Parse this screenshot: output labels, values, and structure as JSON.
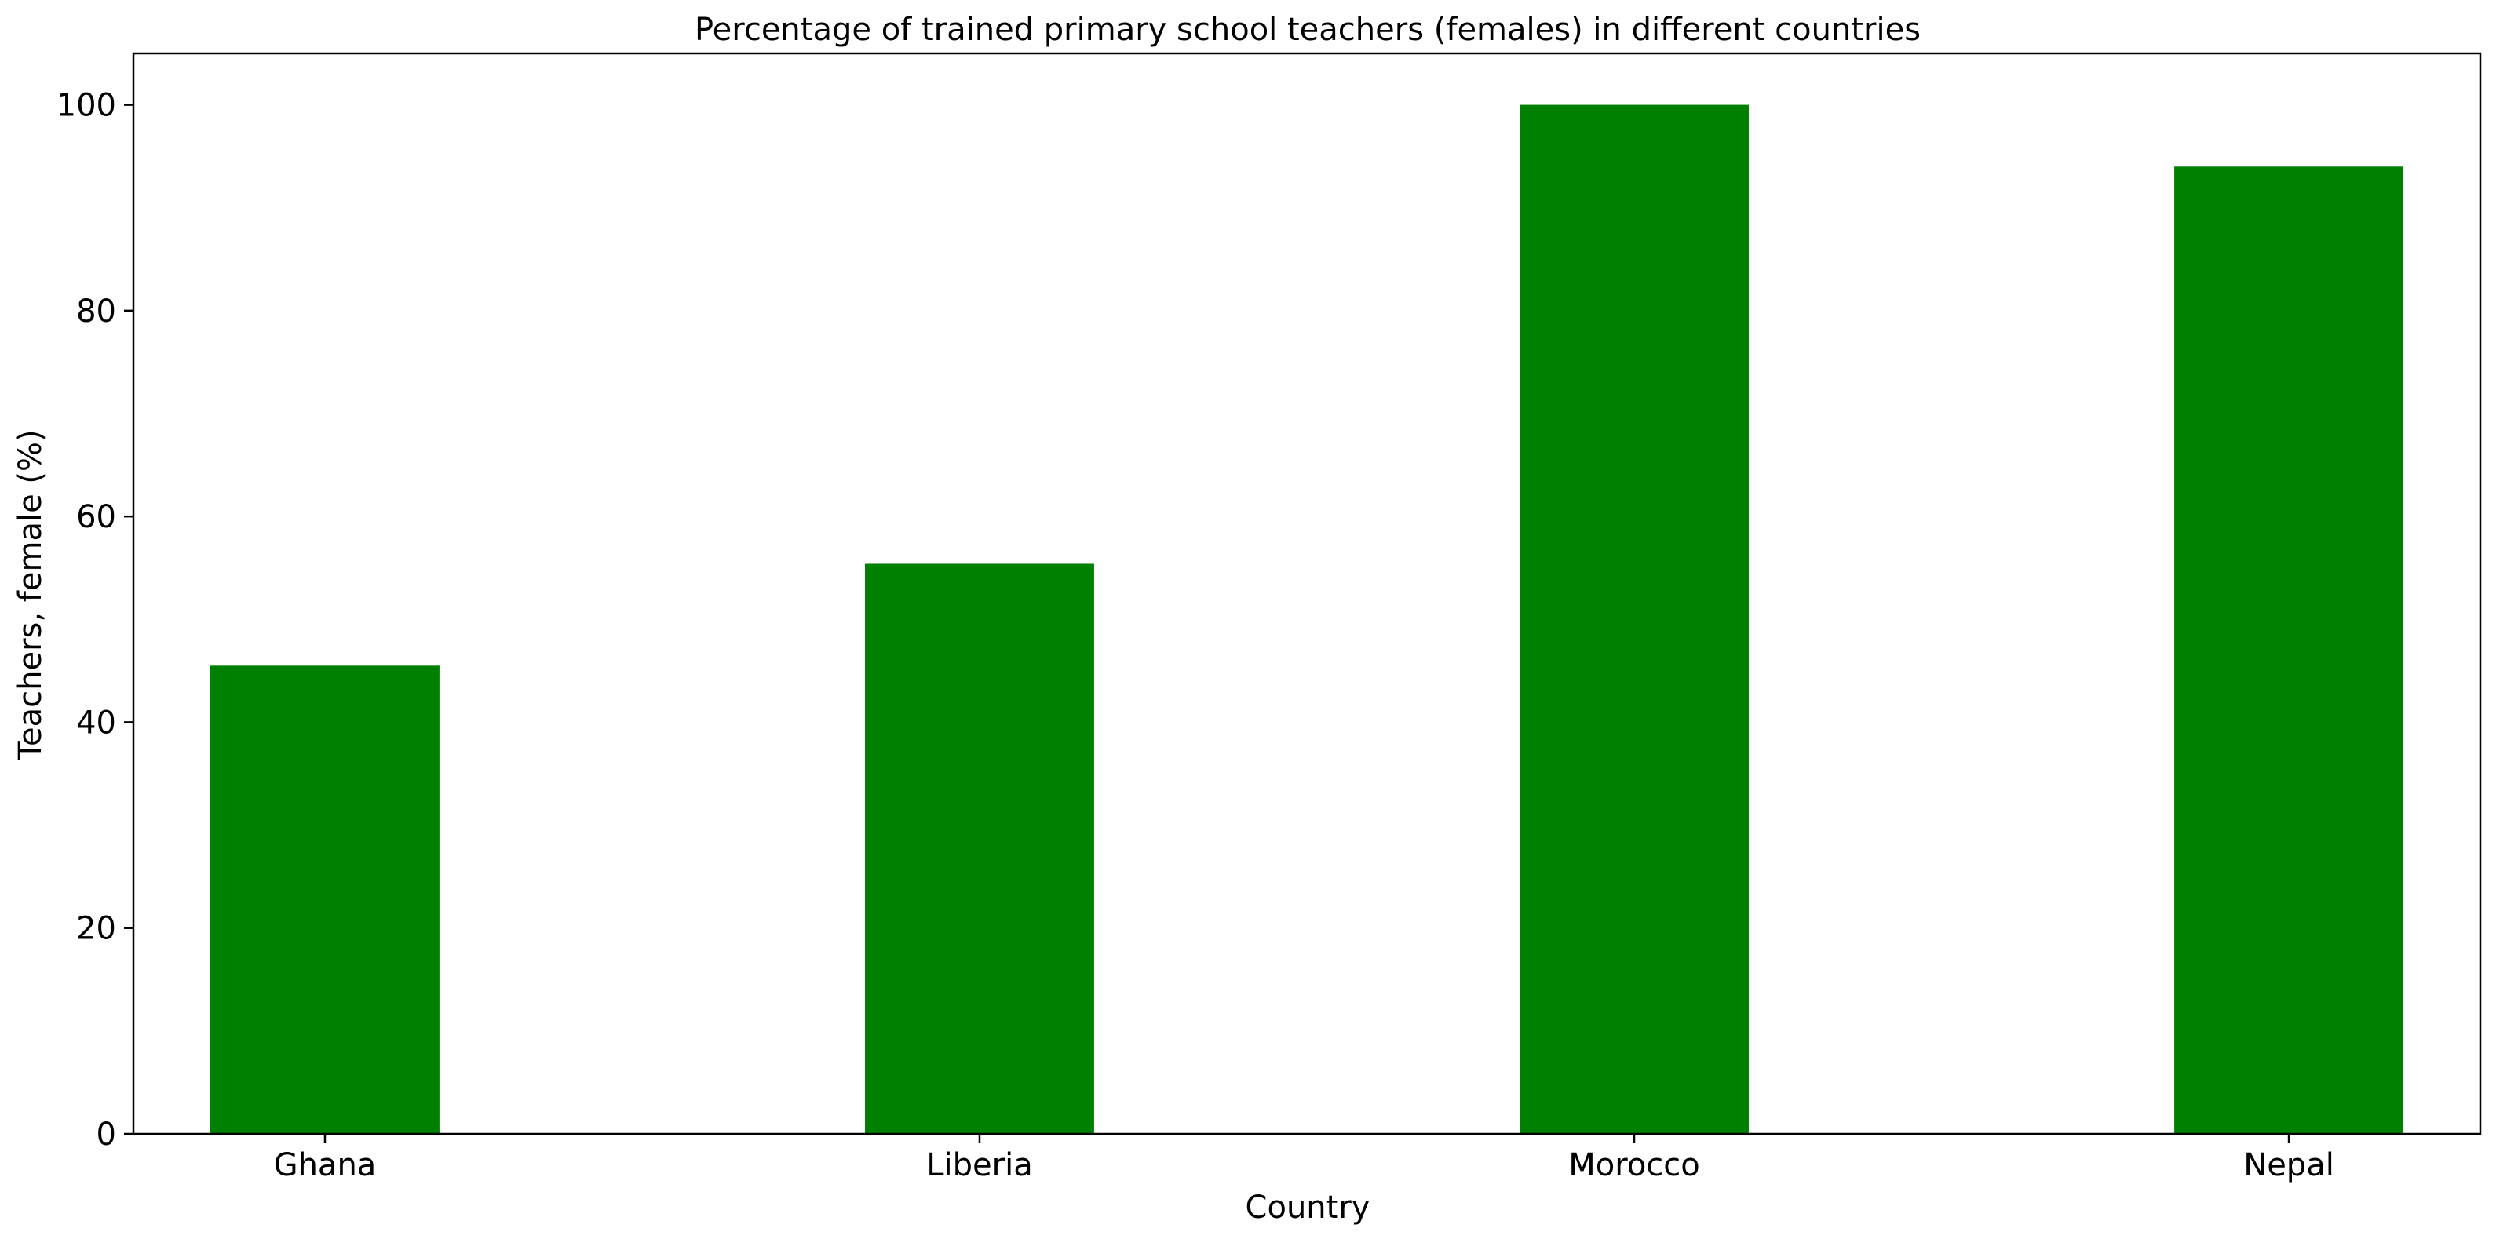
{
  "chart_data": {
    "type": "bar",
    "title": "Percentage of trained primary school teachers (females) in different countries",
    "xlabel": "Country",
    "ylabel": "Teachers, female (%)",
    "categories": [
      "Ghana",
      "Liberia",
      "Morocco",
      "Nepal"
    ],
    "values": [
      45.5,
      55.4,
      100,
      94
    ],
    "ylim": [
      0,
      105
    ],
    "yticks": [
      0,
      20,
      40,
      60,
      80,
      100
    ],
    "grid": false,
    "bar_color": "#008000"
  }
}
